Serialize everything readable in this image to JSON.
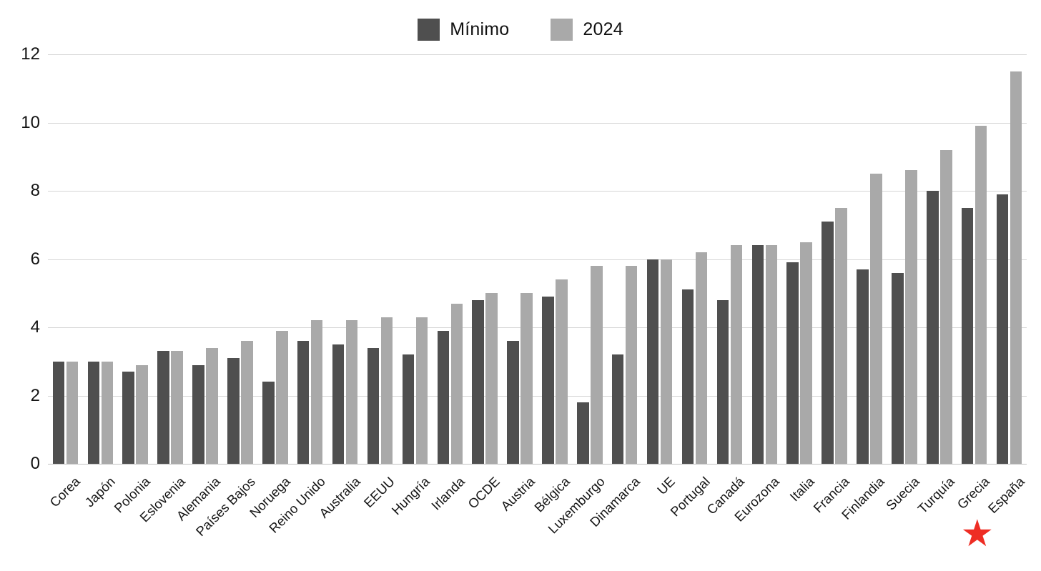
{
  "legend": {
    "items": [
      {
        "id": "minimo",
        "label": "Mínimo",
        "color": "#4f4f4f"
      },
      {
        "id": "2024",
        "label": "2024",
        "color": "#a9a9a9"
      }
    ]
  },
  "annotations": {
    "star": {
      "symbol": "★",
      "color": "#ee2d24",
      "target_category": "España"
    }
  },
  "chart_data": {
    "type": "bar",
    "title": "",
    "xlabel": "",
    "ylabel": "",
    "ylim": [
      0,
      12
    ],
    "yticks": [
      0,
      2,
      4,
      6,
      8,
      10,
      12
    ],
    "grid": true,
    "legend_position": "top-center",
    "categories": [
      "Corea",
      "Japón",
      "Polonia",
      "Eslovenia",
      "Alemania",
      "Países Bajos",
      "Noruega",
      "Reino Unido",
      "Australia",
      "EEUU",
      "Hungría",
      "Irlanda",
      "OCDE",
      "Austria",
      "Bélgica",
      "Luxemburgo",
      "Dinamarca",
      "UE",
      "Portugal",
      "Canadá",
      "Eurozona",
      "Italia",
      "Francia",
      "Finlandia",
      "Suecia",
      "Turquía",
      "Grecia",
      "España"
    ],
    "series": [
      {
        "name": "Mínimo",
        "color": "#4f4f4f",
        "values": [
          3.0,
          3.0,
          2.7,
          3.3,
          2.9,
          3.1,
          2.4,
          3.6,
          3.5,
          3.4,
          3.2,
          3.9,
          4.8,
          3.6,
          4.9,
          1.8,
          3.2,
          6.0,
          5.1,
          4.8,
          6.4,
          5.9,
          7.1,
          5.7,
          5.6,
          8.0,
          7.5,
          7.9
        ]
      },
      {
        "name": "2024",
        "color": "#a9a9a9",
        "values": [
          3.0,
          3.0,
          2.9,
          3.3,
          3.4,
          3.6,
          3.9,
          4.2,
          4.2,
          4.3,
          4.3,
          4.7,
          5.0,
          5.0,
          5.4,
          5.8,
          5.8,
          6.0,
          6.2,
          6.4,
          6.4,
          6.5,
          7.5,
          8.5,
          8.6,
          9.2,
          9.9,
          11.5
        ]
      }
    ]
  }
}
